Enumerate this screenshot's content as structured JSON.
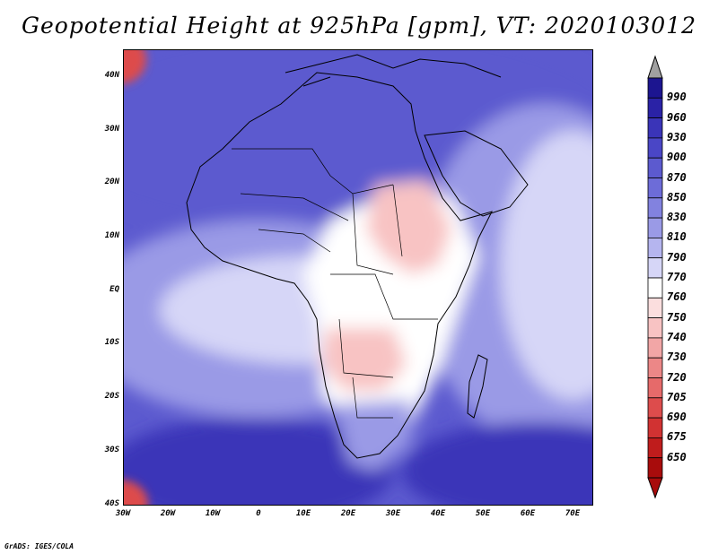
{
  "title": "Geopotential Height at 925hPa [gpm], VT: 2020103012",
  "credit": "GrADS: IGES/COLA",
  "axes": {
    "lat_labels": [
      "40N",
      "30N",
      "20N",
      "10N",
      "EQ",
      "10S",
      "20S",
      "30S",
      "40S"
    ],
    "lon_labels": [
      "30W",
      "20W",
      "10W",
      "0",
      "10E",
      "20E",
      "30E",
      "40E",
      "50E",
      "60E",
      "70E"
    ]
  },
  "colorbar": {
    "levels": [
      "990",
      "960",
      "930",
      "900",
      "870",
      "850",
      "830",
      "810",
      "790",
      "770",
      "760",
      "750",
      "740",
      "730",
      "720",
      "705",
      "690",
      "675",
      "650"
    ],
    "colors": [
      "#1c1590",
      "#2a22a6",
      "#3a34b8",
      "#4a46c6",
      "#5c5acf",
      "#6d6cd8",
      "#8282df",
      "#9a9ae6",
      "#b5b5ef",
      "#d6d6f7",
      "#ffffff",
      "#fbdede",
      "#f8c3c3",
      "#f2a6a6",
      "#ec8787",
      "#e66a6a",
      "#dd4c4c",
      "#d13232",
      "#bf1c1c",
      "#a80c0c"
    ],
    "top_arrow_color": "#a0a0a0",
    "bottom_arrow_color": "#a80c0c"
  },
  "map_colors": {
    "ocean_deep": "#3a34b8",
    "ocean_mid": "#5c5acf",
    "ocean_light": "#9a9ae6",
    "ocean_pale": "#d6d6f7",
    "land_low": "#ffffff",
    "land_pink": "#f8c3c3",
    "land_red": "#f2a6a6",
    "corner_red": "#dd4c4c",
    "coast": "#000000"
  }
}
